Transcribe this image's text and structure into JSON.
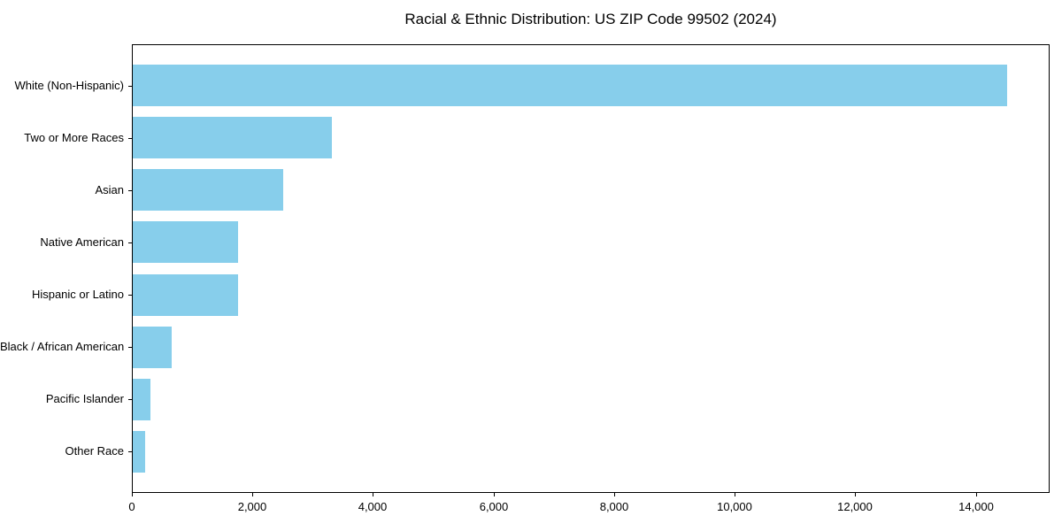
{
  "title": "Racial & Ethnic Distribution: US ZIP Code 99502 (2024)",
  "chart_data": {
    "type": "bar",
    "orientation": "horizontal",
    "title": "Racial & Ethnic Distribution: US ZIP Code 99502 (2024)",
    "categories": [
      "White (Non-Hispanic)",
      "Two or More Races",
      "Asian",
      "Native American",
      "Hispanic or Latino",
      "Black / African American",
      "Pacific Islander",
      "Other Race"
    ],
    "values": [
      14500,
      3300,
      2500,
      1750,
      1750,
      650,
      300,
      200
    ],
    "xlabel": "",
    "ylabel": "",
    "xlim": [
      0,
      15225
    ],
    "x_ticks": [
      0,
      2000,
      4000,
      6000,
      8000,
      10000,
      12000,
      14000
    ],
    "x_tick_labels": [
      "0",
      "2,000",
      "4,000",
      "6,000",
      "8,000",
      "10,000",
      "12,000",
      "14,000"
    ],
    "bar_color": "#87CEEB",
    "axis_color": "#000000",
    "background_color": "#ffffff",
    "grid": false,
    "legend": null
  }
}
